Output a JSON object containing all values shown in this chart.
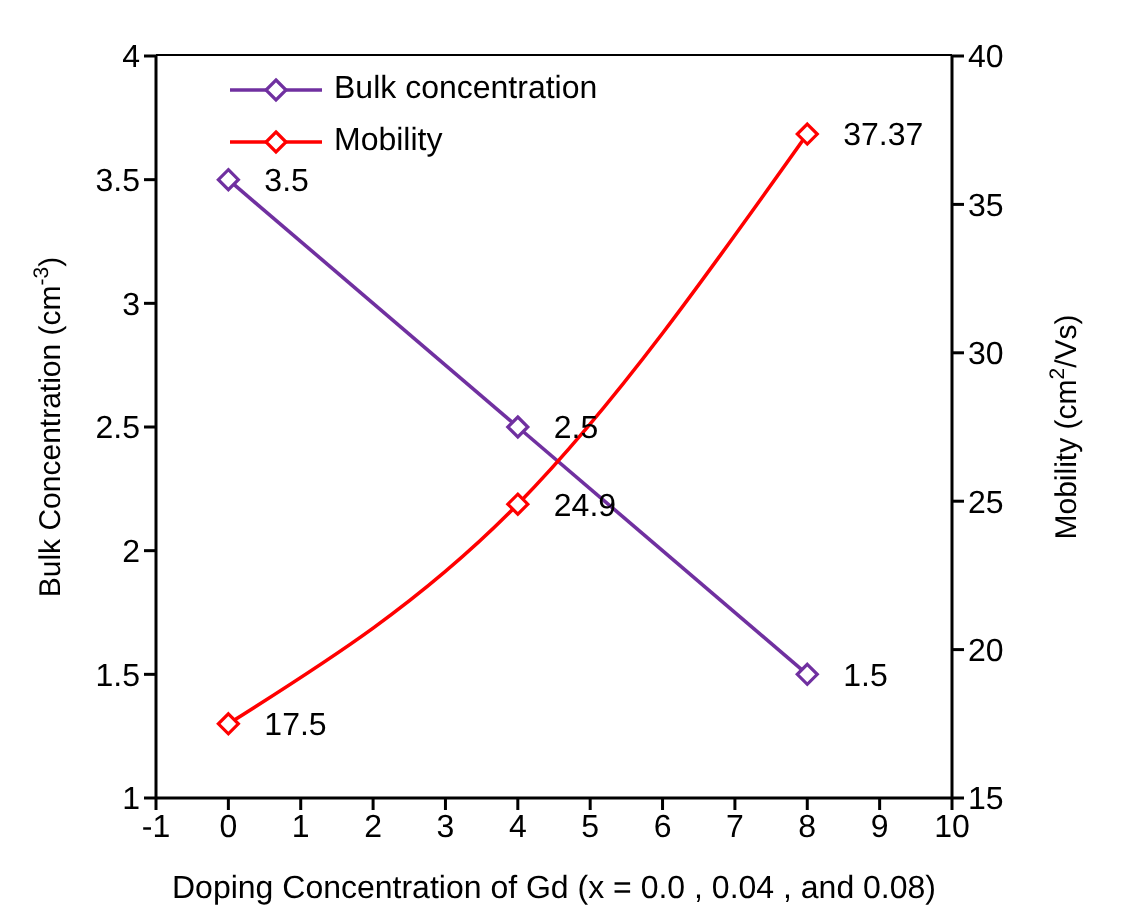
{
  "chart_data": {
    "type": "line",
    "xlabel": "Doping Concentration of Gd (x = 0.0 , 0.04 ,  and 0.08)",
    "ylabel": "Bulk Concentration (cm$^{-3}$)",
    "y2label": "Mobility (cm$^{2}$/Vs)",
    "x": [
      0,
      4,
      8
    ],
    "xlim": [
      -1,
      10
    ],
    "xticks": [
      -1,
      0,
      1,
      2,
      3,
      4,
      5,
      6,
      7,
      8,
      9,
      10
    ],
    "ylim": [
      1,
      4
    ],
    "yticks": [
      1,
      1.5,
      2,
      2.5,
      3,
      3.5,
      4
    ],
    "y2lim": [
      15,
      40
    ],
    "y2ticks": [
      15,
      20,
      25,
      30,
      35,
      40
    ],
    "series": [
      {
        "name": "Bulk concentration",
        "color": "#7030a0",
        "values": [
          3.5,
          2.5,
          1.5
        ]
      },
      {
        "name": "Mobility",
        "color": "#ff0000",
        "values": [
          17.5,
          24.9,
          37.37
        ],
        "axis": "y2"
      }
    ],
    "data_labels": true,
    "marker": "diamond",
    "line_style": "solid",
    "grid": false,
    "legend": "top"
  }
}
